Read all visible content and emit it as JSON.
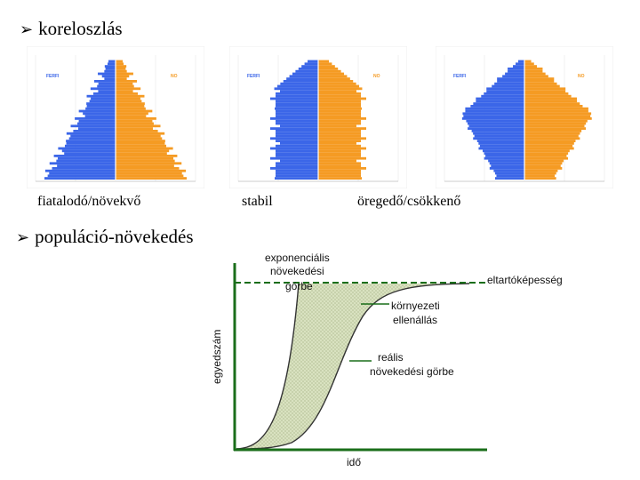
{
  "bullets": {
    "age_structure": "koreloszlás",
    "growth": "populáció-növekedés"
  },
  "pyramids": [
    {
      "id": "young",
      "caption": "fiatalodó/növekvő",
      "male_label": "FERFI",
      "female_label": "NO"
    },
    {
      "id": "stable",
      "caption": "stabil",
      "male_label": "FERFI",
      "female_label": "NO"
    },
    {
      "id": "aging",
      "caption": "öregedő/csökkenő",
      "male_label": "FERFI",
      "female_label": "NO"
    }
  ],
  "growth_chart": {
    "exp_label": [
      "exponenciális",
      "növekedési",
      "görbe"
    ],
    "capacity_label": "eltartóképesség",
    "resistance_label": [
      "környezeti",
      "ellenállás"
    ],
    "real_label": [
      "reális",
      "növekedési görbe"
    ],
    "y_axis_label": "egyedszám",
    "x_axis_label": "idő"
  },
  "colors": {
    "male": "#3b66e8",
    "female": "#f59b23",
    "fill": "#d9e2c0",
    "axis": "#1a6e1a",
    "dashed": "#1a6e1a"
  },
  "chart_data": [
    {
      "type": "bar",
      "title": "fiatalodó/növekvő",
      "series": [
        {
          "name": "FERFI"
        },
        {
          "name": "NO"
        }
      ]
    },
    {
      "type": "bar",
      "title": "stabil",
      "series": [
        {
          "name": "FERFI"
        },
        {
          "name": "NO"
        }
      ]
    },
    {
      "type": "bar",
      "title": "öregedő/csökkenő",
      "series": [
        {
          "name": "FERFI"
        },
        {
          "name": "NO"
        }
      ]
    },
    {
      "type": "line",
      "xlabel": "idő",
      "ylabel": "egyedszám",
      "series": [
        {
          "name": "exponenciális növekedési görbe"
        },
        {
          "name": "reális növekedési görbe"
        }
      ],
      "annotations": [
        "eltartóképesség",
        "környezeti ellenállás"
      ]
    }
  ]
}
